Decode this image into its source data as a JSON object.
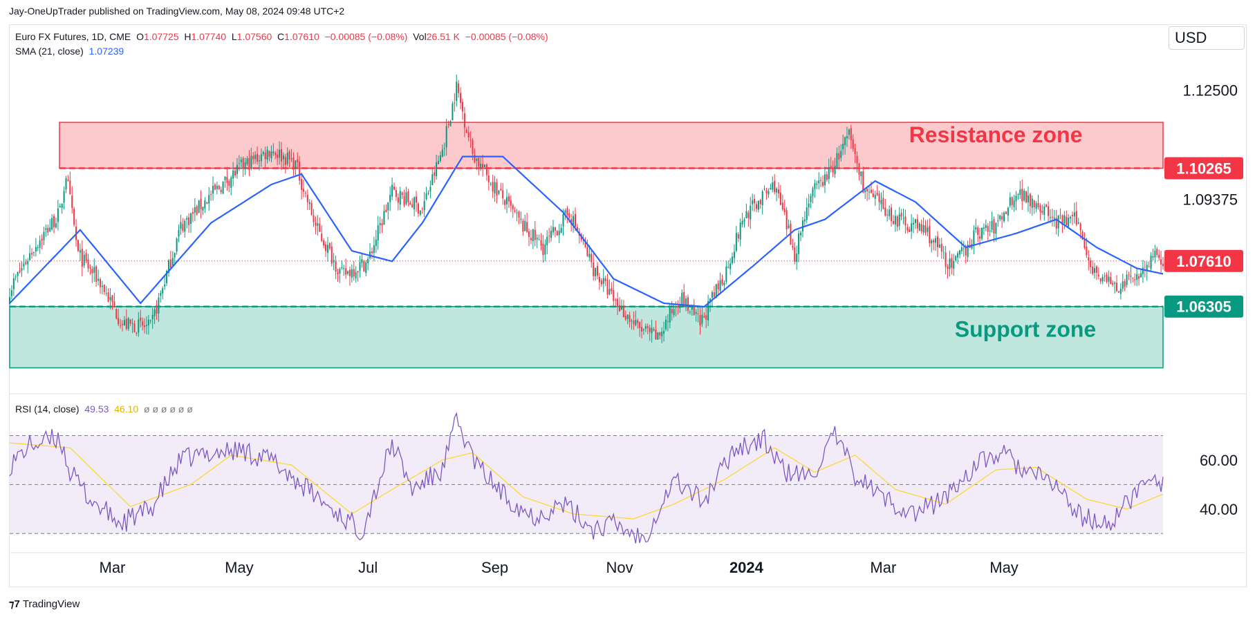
{
  "header": {
    "published": "Jay-OneUpTrader published on TradingView.com, May 08, 2024 09:48 UTC+2"
  },
  "legend": {
    "symbol": "Euro FX Futures, 1D, CME",
    "o_label": "O",
    "o": "1.07725",
    "h_label": "H",
    "h": "1.07740",
    "l_label": "L",
    "l": "1.07560",
    "c_label": "C",
    "c": "1.07610",
    "change": "−0.00085 (−0.08%)",
    "vol_label": "Vol",
    "vol": "26.51 K",
    "vol_change": "−0.00085 (−0.08%)",
    "sma_label": "SMA (21, close)",
    "sma_value": "1.07239",
    "rsi_label": "RSI (14, close)",
    "rsi_value": "49.53",
    "rsi_ma_value": "46.10",
    "rsi_extra": "ø ø ø ø ø ø"
  },
  "currency": "USD",
  "footer": {
    "brand": "TradingView"
  },
  "colors": {
    "up": "#089981",
    "down": "#f23645",
    "sma": "#2962ff",
    "rsi": "#7e57c2",
    "rsi_ma": "#fdd835",
    "resistance_fill": "#fcc9cd",
    "support_fill": "#bfe7dd",
    "resistance_text": "#f23645",
    "support_text": "#089981"
  },
  "chart_data": {
    "type": "candlestick",
    "instrument": "Euro FX Futures",
    "timeframe": "1D",
    "x_ticks": [
      "Mar",
      "May",
      "Jul",
      "Sep",
      "Nov",
      "2024",
      "Mar",
      "May"
    ],
    "y_ticks": [
      "1.12500",
      "1.09375"
    ],
    "ylim": [
      1.045,
      1.135
    ],
    "price_labels": [
      {
        "value": 1.10265,
        "text": "1.10265",
        "color": "#f23645"
      },
      {
        "value": 1.0761,
        "text": "1.07610",
        "color": "#f23645"
      },
      {
        "value": 1.06305,
        "text": "1.06305",
        "color": "#089981"
      }
    ],
    "zones": [
      {
        "name": "Resistance zone",
        "low": 1.10265,
        "high": 1.1158
      },
      {
        "name": "Support zone",
        "low": 1.0455,
        "high": 1.06305
      }
    ],
    "last_close": 1.0761,
    "close_path": [
      [
        0,
        1.068
      ],
      [
        12,
        1.08
      ],
      [
        25,
        1.09
      ],
      [
        28,
        1.101
      ],
      [
        34,
        1.078
      ],
      [
        45,
        1.07
      ],
      [
        56,
        1.058
      ],
      [
        70,
        1.057
      ],
      [
        85,
        1.086
      ],
      [
        100,
        1.095
      ],
      [
        115,
        1.103
      ],
      [
        130,
        1.108
      ],
      [
        142,
        1.104
      ],
      [
        152,
        1.086
      ],
      [
        165,
        1.072
      ],
      [
        178,
        1.076
      ],
      [
        190,
        1.096
      ],
      [
        205,
        1.091
      ],
      [
        215,
        1.108
      ],
      [
        222,
        1.126
      ],
      [
        230,
        1.107
      ],
      [
        240,
        1.098
      ],
      [
        255,
        1.086
      ],
      [
        265,
        1.08
      ],
      [
        278,
        1.09
      ],
      [
        290,
        1.074
      ],
      [
        300,
        1.065
      ],
      [
        312,
        1.057
      ],
      [
        322,
        1.054
      ],
      [
        333,
        1.066
      ],
      [
        343,
        1.058
      ],
      [
        355,
        1.072
      ],
      [
        365,
        1.089
      ],
      [
        380,
        1.098
      ],
      [
        390,
        1.078
      ],
      [
        397,
        1.094
      ],
      [
        408,
        1.102
      ],
      [
        417,
        1.112
      ],
      [
        425,
        1.096
      ],
      [
        440,
        1.088
      ],
      [
        455,
        1.085
      ],
      [
        468,
        1.074
      ],
      [
        480,
        1.084
      ],
      [
        490,
        1.086
      ],
      [
        500,
        1.096
      ],
      [
        510,
        1.093
      ],
      [
        520,
        1.087
      ],
      [
        530,
        1.088
      ],
      [
        538,
        1.074
      ],
      [
        550,
        1.068
      ],
      [
        562,
        1.073
      ],
      [
        568,
        1.077
      ],
      [
        573,
        1.0761
      ]
    ],
    "sma": {
      "name": "SMA (21, close)",
      "last": 1.07239,
      "path": [
        [
          0,
          1.064
        ],
        [
          35,
          1.085
        ],
        [
          65,
          1.064
        ],
        [
          100,
          1.087
        ],
        [
          130,
          1.098
        ],
        [
          145,
          1.101
        ],
        [
          170,
          1.079
        ],
        [
          190,
          1.076
        ],
        [
          205,
          1.087
        ],
        [
          225,
          1.106
        ],
        [
          245,
          1.106
        ],
        [
          275,
          1.09
        ],
        [
          300,
          1.071
        ],
        [
          325,
          1.064
        ],
        [
          345,
          1.063
        ],
        [
          370,
          1.075
        ],
        [
          390,
          1.085
        ],
        [
          405,
          1.088
        ],
        [
          430,
          1.099
        ],
        [
          450,
          1.093
        ],
        [
          475,
          1.08
        ],
        [
          500,
          1.084
        ],
        [
          520,
          1.088
        ],
        [
          540,
          1.08
        ],
        [
          560,
          1.074
        ],
        [
          573,
          1.07239
        ]
      ]
    },
    "rsi": {
      "name": "RSI (14, close)",
      "last": 49.53,
      "ma_last": 46.1,
      "y_ticks": [
        "60.00",
        "40.00"
      ],
      "ylim": [
        25,
        80
      ],
      "bands": [
        70,
        50,
        30
      ],
      "path": [
        [
          0,
          58
        ],
        [
          10,
          66
        ],
        [
          25,
          69
        ],
        [
          30,
          55
        ],
        [
          40,
          44
        ],
        [
          55,
          34
        ],
        [
          70,
          40
        ],
        [
          85,
          60
        ],
        [
          100,
          63
        ],
        [
          115,
          64
        ],
        [
          130,
          60
        ],
        [
          145,
          50
        ],
        [
          160,
          40
        ],
        [
          175,
          31
        ],
        [
          190,
          67
        ],
        [
          200,
          48
        ],
        [
          215,
          56
        ],
        [
          222,
          76
        ],
        [
          232,
          58
        ],
        [
          245,
          46
        ],
        [
          260,
          37
        ],
        [
          275,
          42
        ],
        [
          290,
          32
        ],
        [
          300,
          34
        ],
        [
          315,
          28
        ],
        [
          330,
          52
        ],
        [
          345,
          43
        ],
        [
          360,
          65
        ],
        [
          375,
          68
        ],
        [
          385,
          55
        ],
        [
          398,
          53
        ],
        [
          410,
          70
        ],
        [
          420,
          54
        ],
        [
          435,
          44
        ],
        [
          450,
          38
        ],
        [
          465,
          45
        ],
        [
          480,
          58
        ],
        [
          493,
          63
        ],
        [
          505,
          55
        ],
        [
          520,
          50
        ],
        [
          530,
          38
        ],
        [
          545,
          33
        ],
        [
          558,
          45
        ],
        [
          568,
          55
        ],
        [
          573,
          49.53
        ]
      ],
      "ma_path": [
        [
          0,
          67
        ],
        [
          30,
          65
        ],
        [
          60,
          41
        ],
        [
          90,
          50
        ],
        [
          110,
          62
        ],
        [
          140,
          58
        ],
        [
          170,
          38
        ],
        [
          190,
          48
        ],
        [
          215,
          60
        ],
        [
          230,
          63
        ],
        [
          255,
          45
        ],
        [
          280,
          38
        ],
        [
          310,
          36
        ],
        [
          330,
          42
        ],
        [
          355,
          52
        ],
        [
          380,
          65
        ],
        [
          400,
          55
        ],
        [
          420,
          62
        ],
        [
          440,
          48
        ],
        [
          465,
          42
        ],
        [
          490,
          56
        ],
        [
          510,
          57
        ],
        [
          535,
          44
        ],
        [
          555,
          40
        ],
        [
          573,
          46.1
        ]
      ]
    }
  }
}
